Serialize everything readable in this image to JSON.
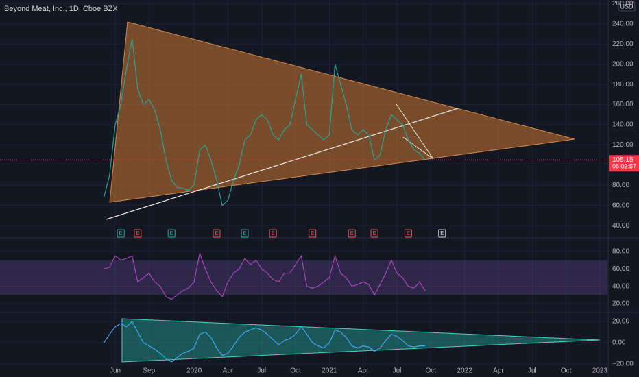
{
  "chart_data": [
    {
      "type": "line",
      "title": "Beyond Meat, Inc., 1D, Cboe BZX",
      "unit_label": "USD",
      "color": "#26a69a",
      "ylim": [
        29.2,
        263.7
      ],
      "yticks": [
        {
          "value": 40,
          "label": "40.00"
        },
        {
          "value": 60,
          "label": "60.00"
        },
        {
          "value": 80,
          "label": "80.00"
        },
        {
          "value": 120,
          "label": "120.00"
        },
        {
          "value": 140,
          "label": "140.00"
        },
        {
          "value": 160,
          "label": "160.00"
        },
        {
          "value": 180,
          "label": "180.00"
        },
        {
          "value": 200,
          "label": "200.00"
        },
        {
          "value": 220,
          "label": "220.00"
        },
        {
          "value": 240,
          "label": "240.00"
        },
        {
          "value": 260,
          "label": "260.00"
        }
      ],
      "grid": true,
      "last_price": 105.15,
      "last_price_color": "#f23645",
      "countdown": "05:03:57",
      "values": [
        68,
        90,
        140,
        160,
        195,
        225,
        175,
        160,
        165,
        155,
        135,
        105,
        85,
        78,
        77,
        75,
        80,
        115,
        120,
        105,
        85,
        60,
        65,
        85,
        100,
        125,
        130,
        145,
        150,
        145,
        130,
        125,
        135,
        140,
        165,
        190,
        140,
        135,
        130,
        125,
        130,
        200,
        180,
        160,
        135,
        130,
        135,
        130,
        105,
        110,
        135,
        150,
        145,
        140,
        125,
        115,
        112,
        105,
        null,
        null,
        null,
        null,
        null,
        null,
        null,
        null,
        null,
        null,
        null,
        null,
        null,
        null,
        null,
        null,
        null,
        null,
        null,
        null,
        null,
        null,
        null,
        null,
        null,
        null,
        null,
        null,
        null,
        null,
        null,
        null
      ],
      "earnings": [
        null,
        null,
        null,
        "E",
        null,
        null,
        "E",
        null,
        null,
        null,
        null,
        null,
        "E",
        null,
        null,
        null,
        null,
        null,
        null,
        null,
        "E",
        null,
        null,
        null,
        null,
        "E",
        null,
        null,
        null,
        null,
        "E",
        null,
        null,
        null,
        null,
        null,
        null,
        "E",
        null,
        null,
        null,
        null,
        null,
        null,
        "E",
        null,
        null,
        null,
        "E",
        null,
        null,
        null,
        null,
        null,
        "E",
        null,
        null,
        null,
        null,
        null,
        "E",
        null,
        null,
        null,
        null,
        null,
        null,
        null,
        null,
        null,
        null,
        null,
        null,
        null,
        null,
        null,
        null,
        null,
        null,
        null,
        null,
        null,
        null,
        null,
        null,
        null,
        null,
        null,
        null,
        null
      ],
      "earnings_colors": [
        null,
        null,
        null,
        "#26a69a",
        null,
        null,
        "#ef5350",
        null,
        null,
        null,
        null,
        null,
        "#26a69a",
        null,
        null,
        null,
        null,
        null,
        null,
        null,
        "#ef5350",
        null,
        null,
        null,
        null,
        "#26a69a",
        null,
        null,
        null,
        null,
        "#ef5350",
        null,
        null,
        null,
        null,
        null,
        null,
        "#ef5350",
        null,
        null,
        null,
        null,
        null,
        null,
        "#ef5350",
        null,
        null,
        null,
        "#ef5350",
        null,
        null,
        null,
        null,
        null,
        "#ef5350",
        null,
        null,
        null,
        null,
        null,
        "#d1d4dc",
        null,
        null,
        null,
        null,
        null,
        null,
        null,
        null,
        null,
        null,
        null,
        null,
        null,
        null,
        null,
        null,
        null,
        null,
        null,
        null,
        null,
        null,
        null,
        null,
        null,
        null,
        null,
        null,
        null
      ]
    },
    {
      "type": "line",
      "color": "#ab47bc",
      "band_color": "#7e57c2",
      "bands": [
        70,
        30
      ],
      "ylim": [
        10.5,
        93.4
      ],
      "yticks": [
        {
          "value": 20,
          "label": "20.00"
        },
        {
          "value": 40,
          "label": "40.00"
        },
        {
          "value": 60,
          "label": "60.00"
        },
        {
          "value": 80,
          "label": "80.00"
        }
      ],
      "grid": true,
      "values": [
        60,
        62,
        75,
        70,
        72,
        75,
        45,
        50,
        55,
        45,
        40,
        28,
        25,
        30,
        35,
        38,
        45,
        78,
        60,
        45,
        35,
        28,
        45,
        55,
        60,
        72,
        65,
        70,
        60,
        55,
        48,
        45,
        55,
        55,
        65,
        75,
        40,
        38,
        40,
        45,
        50,
        75,
        55,
        50,
        40,
        42,
        45,
        42,
        30,
        42,
        55,
        70,
        55,
        50,
        40,
        38,
        45,
        35,
        null,
        null,
        null,
        null,
        null,
        null,
        null,
        null,
        null,
        null,
        null,
        null,
        null,
        null,
        null,
        null,
        null,
        null,
        null,
        null,
        null,
        null,
        null,
        null,
        null,
        null,
        null,
        null,
        null,
        null,
        null,
        null
      ]
    },
    {
      "type": "line",
      "color": "#42a5f5",
      "ylim": [
        -31,
        27.1
      ],
      "yticks": [
        {
          "value": -20,
          "label": "−20.00"
        },
        {
          "value": 0,
          "label": "0.00"
        },
        {
          "value": 20,
          "label": "20.00"
        }
      ],
      "grid": true,
      "categories": [
        null,
        null,
        "Jun",
        null,
        null,
        null,
        null,
        null,
        "Sep",
        null,
        null,
        null,
        null,
        null,
        null,
        null,
        "2020",
        null,
        null,
        null,
        null,
        null,
        "Apr",
        null,
        null,
        null,
        null,
        null,
        "Jul",
        null,
        null,
        null,
        null,
        null,
        "Oct",
        null,
        null,
        null,
        null,
        null,
        "2021",
        null,
        null,
        null,
        null,
        null,
        "Apr",
        null,
        null,
        null,
        null,
        null,
        "Jul",
        null,
        null,
        null,
        null,
        null,
        "Oct",
        null,
        null,
        null,
        null,
        null,
        "2022",
        null,
        null,
        null,
        null,
        null,
        "Apr",
        null,
        null,
        null,
        null,
        null,
        "Jul",
        null,
        null,
        null,
        null,
        null,
        "Oct",
        null,
        null,
        null,
        null,
        null,
        "2023",
        null
      ],
      "values": [
        0,
        8,
        15,
        18,
        15,
        20,
        10,
        0,
        -3,
        -6,
        -10,
        -15,
        -18,
        -14,
        -10,
        -8,
        -5,
        8,
        10,
        5,
        -5,
        -12,
        -10,
        -3,
        5,
        10,
        12,
        14,
        12,
        8,
        3,
        -2,
        2,
        4,
        8,
        15,
        8,
        0,
        -3,
        -5,
        0,
        12,
        10,
        5,
        -3,
        -5,
        -3,
        -4,
        -8,
        -5,
        2,
        8,
        6,
        2,
        -3,
        -4,
        -3,
        -3,
        null,
        null,
        null,
        null,
        null,
        null,
        null,
        null,
        null,
        null,
        null,
        null,
        null,
        null,
        null,
        null,
        null,
        null,
        null,
        null,
        null,
        null,
        null,
        null,
        null,
        null,
        null,
        null,
        null,
        null,
        null,
        null
      ]
    }
  ]
}
